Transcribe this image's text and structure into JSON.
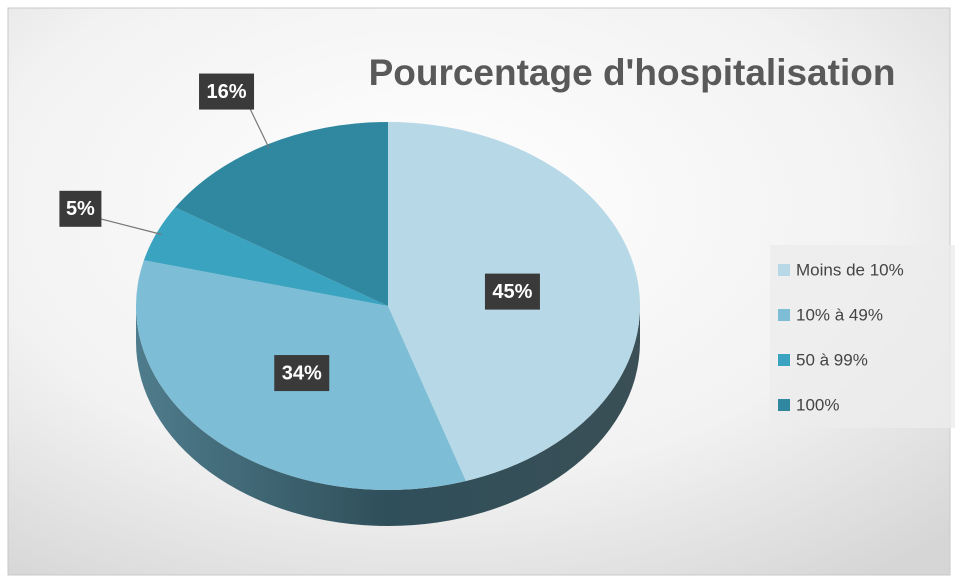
{
  "chart_data": {
    "type": "pie",
    "title": "Pourcentage d'hospitalisation",
    "categories": [
      "Moins de 10%",
      "10% à 49%",
      "50 à 99%",
      "100%"
    ],
    "values": [
      45,
      34,
      5,
      16
    ],
    "value_labels": [
      "45%",
      "34%",
      "5%",
      "16%"
    ],
    "colors": [
      "#b7d8e6",
      "#7dbdd5",
      "#3aa3bf",
      "#2f87a0"
    ],
    "legend": "right"
  }
}
